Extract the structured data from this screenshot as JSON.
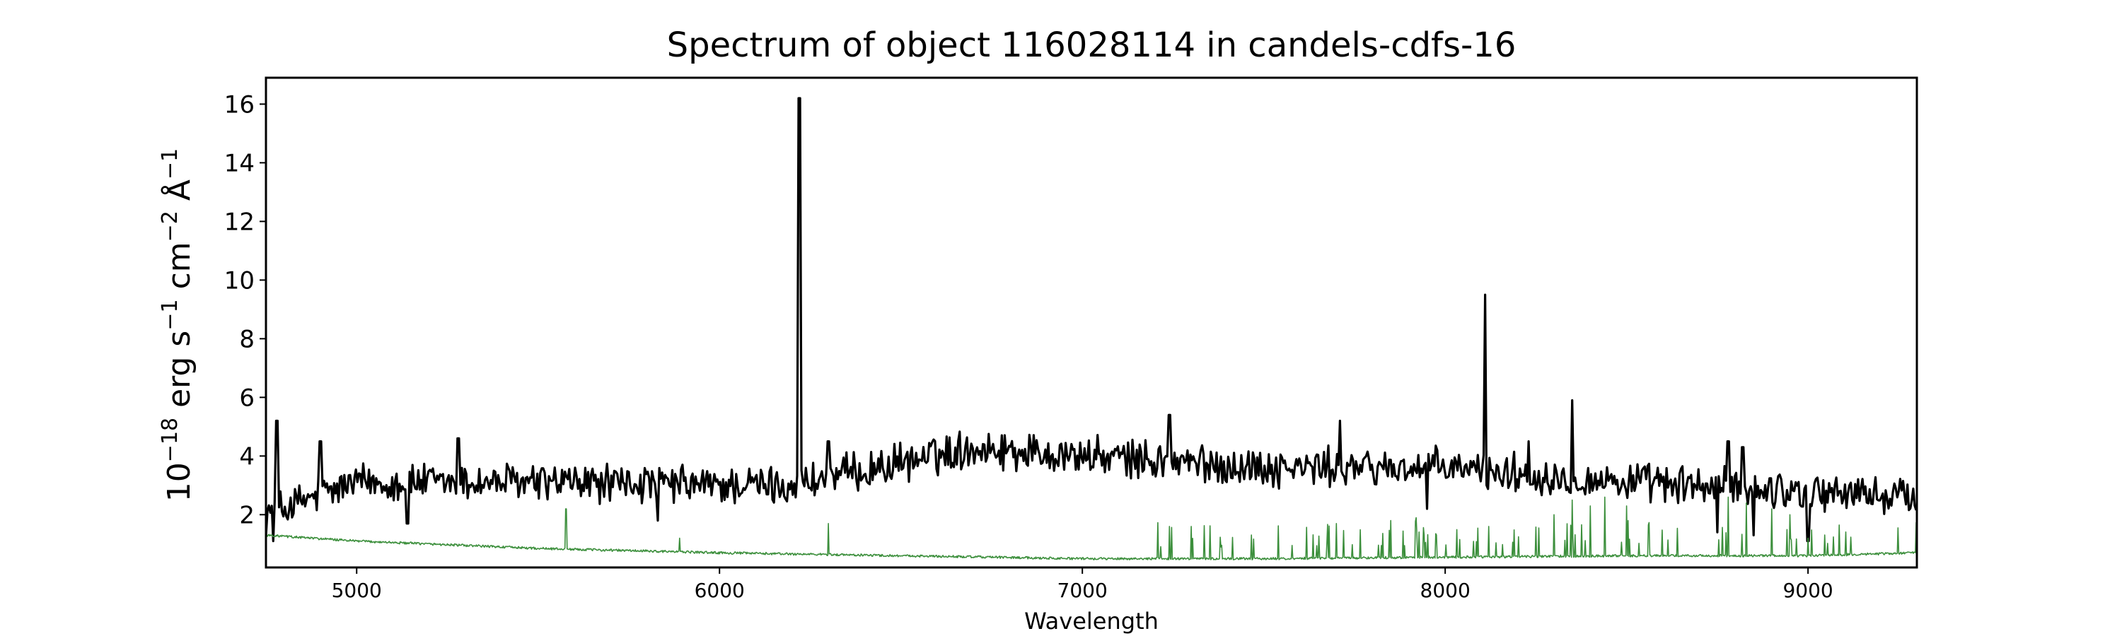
{
  "chart_data": {
    "type": "line",
    "title": "Spectrum of object 116028114 in candels-cdfs-16",
    "xlabel": "Wavelength",
    "ylabel": {
      "prefix": "10",
      "exp1": "−18",
      "text1": " erg s",
      "exp2": "−1",
      "text2": " cm",
      "exp3": "−2",
      "text3": " Å",
      "exp4": "−1"
    },
    "xlim": [
      4750,
      9300
    ],
    "ylim": [
      0.2,
      16.9
    ],
    "x_ticks": [
      5000,
      6000,
      7000,
      8000,
      9000
    ],
    "x_tick_labels": [
      "5000",
      "6000",
      "7000",
      "8000",
      "9000"
    ],
    "y_ticks": [
      2,
      4,
      6,
      8,
      10,
      12,
      14,
      16
    ],
    "y_tick_labels": [
      "2",
      "4",
      "6",
      "8",
      "10",
      "12",
      "14",
      "16"
    ],
    "grid": false,
    "series": [
      {
        "color": "#000000",
        "style": "spectrum",
        "baseline": [
          [
            4750,
            2.0
          ],
          [
            5000,
            3.1
          ],
          [
            5500,
            3.1
          ],
          [
            6000,
            3.0
          ],
          [
            6200,
            3.0
          ],
          [
            6400,
            3.5
          ],
          [
            6700,
            4.3
          ],
          [
            7000,
            4.0
          ],
          [
            7500,
            3.6
          ],
          [
            8000,
            3.6
          ],
          [
            8500,
            3.1
          ],
          [
            9000,
            2.8
          ],
          [
            9300,
            2.6
          ]
        ],
        "noise": 0.55,
        "peaks": [
          [
            4780,
            5.2
          ],
          [
            4900,
            4.5
          ],
          [
            5280,
            4.6
          ],
          [
            6220,
            16.2
          ],
          [
            6300,
            4.5
          ],
          [
            7240,
            5.4
          ],
          [
            7710,
            5.2
          ],
          [
            8110,
            9.5
          ],
          [
            8230,
            4.5
          ],
          [
            8350,
            5.9
          ],
          [
            8780,
            4.5
          ],
          [
            8820,
            4.3
          ]
        ],
        "dips": [
          [
            4770,
            1.1
          ],
          [
            5140,
            1.7
          ],
          [
            5830,
            1.8
          ],
          [
            7950,
            2.2
          ],
          [
            8750,
            1.4
          ],
          [
            8850,
            1.3
          ],
          [
            9000,
            1.1
          ]
        ]
      },
      {
        "color": "#3c8f3c",
        "style": "noise",
        "baseline": [
          [
            4750,
            1.3
          ],
          [
            5000,
            1.1
          ],
          [
            5500,
            0.85
          ],
          [
            6000,
            0.7
          ],
          [
            6500,
            0.6
          ],
          [
            7000,
            0.5
          ],
          [
            7500,
            0.5
          ],
          [
            8000,
            0.55
          ],
          [
            8500,
            0.6
          ],
          [
            9000,
            0.6
          ],
          [
            9300,
            0.7
          ]
        ],
        "peaks": [
          [
            5577,
            2.2
          ],
          [
            5890,
            1.2
          ],
          [
            6300,
            1.7
          ],
          [
            7240,
            1.6
          ],
          [
            7300,
            1.6
          ],
          [
            7700,
            1.7
          ],
          [
            7850,
            1.8
          ],
          [
            7920,
            1.9
          ],
          [
            8300,
            2.0
          ],
          [
            8350,
            2.5
          ],
          [
            8400,
            2.3
          ],
          [
            8440,
            2.6
          ],
          [
            8500,
            2.3
          ],
          [
            8780,
            2.6
          ],
          [
            8830,
            2.4
          ],
          [
            8900,
            2.2
          ],
          [
            8950,
            2.0
          ]
        ]
      }
    ]
  }
}
